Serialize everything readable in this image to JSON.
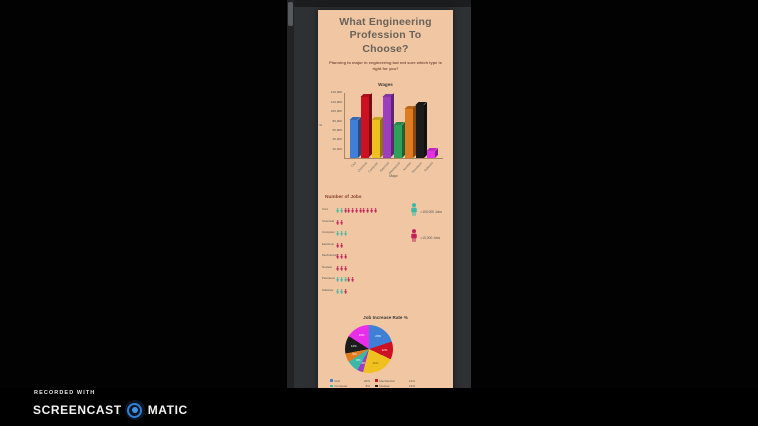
{
  "watermark": {
    "recorded_with": "RECORDED WITH",
    "brand_left": "SCREENCAST",
    "brand_right": "MATIC",
    "logo_color": "#2f7fd9"
  },
  "page": {
    "bg": "#f0c7a2",
    "title": "What Engineering Profession To Choose?",
    "subtitle": "Planning to major in engineering but not sure which type is right for you?"
  },
  "chart_data": [
    {
      "type": "bar",
      "title": "Wages",
      "xlabel": "Major",
      "ylabel": "$",
      "categories": [
        "Civil",
        "Chemical",
        "Computer",
        "Electrical",
        "Mechanical",
        "Nuclear",
        "Petroleum",
        "Software"
      ],
      "values": [
        80000,
        130000,
        80000,
        130000,
        70000,
        105000,
        112000,
        15000
      ],
      "colors": [
        "#3f7fd6",
        "#cc1122",
        "#f0c020",
        "#9b3fc0",
        "#2fa05a",
        "#e07b20",
        "#1c1c1c",
        "#e82ee8"
      ],
      "ylim": [
        0,
        140000
      ],
      "yticks": [
        140000,
        120000,
        100000,
        80000,
        60000,
        40000,
        20000
      ],
      "grid": false
    },
    {
      "type": "pictogram",
      "title": "Number of Jobs",
      "unit_large": {
        "color": "#3cb8a8",
        "label": "=100,000 Jobs"
      },
      "unit_small": {
        "color": "#c2205a",
        "label": "=10,000 Jobs"
      },
      "rows": [
        {
          "label": "Civil",
          "large": 2,
          "small": 9
        },
        {
          "label": "Chemical",
          "large": 0,
          "small": 2
        },
        {
          "label": "Computer",
          "large": 3,
          "small": 0
        },
        {
          "label": "Electrical",
          "large": 0,
          "small": 2
        },
        {
          "label": "Mechanical",
          "large": 0,
          "small": 3
        },
        {
          "label": "Nuclear",
          "large": 0,
          "small": 3
        },
        {
          "label": "Petroleum",
          "large": 3,
          "small": 2
        },
        {
          "label": "Software",
          "large": 2,
          "small": 1
        }
      ]
    },
    {
      "type": "pie",
      "title": "Job Increase Rate %",
      "legend_position": "bottom",
      "slices": [
        {
          "label": "Civil",
          "value": 20,
          "color": "#3f7fd6"
        },
        {
          "label": "Mechanical",
          "value": 12,
          "color": "#cc1122"
        },
        {
          "label": "Chemical",
          "value": 22,
          "color": "#f0c020"
        },
        {
          "label": "Electrical",
          "value": 4,
          "color": "#9b3fc0"
        },
        {
          "label": "Computer",
          "value": 8,
          "color": "#3cb8a8"
        },
        {
          "label": "Petroleum",
          "value": 6,
          "color": "#e07b20"
        },
        {
          "label": "Nuclear",
          "value": 12,
          "color": "#1c1c1c"
        },
        {
          "label": "Software",
          "value": 16,
          "color": "#e82ee8"
        }
      ],
      "legend_columns": [
        [
          0,
          4,
          3,
          2
        ],
        [
          1,
          6,
          5,
          7
        ]
      ]
    }
  ]
}
